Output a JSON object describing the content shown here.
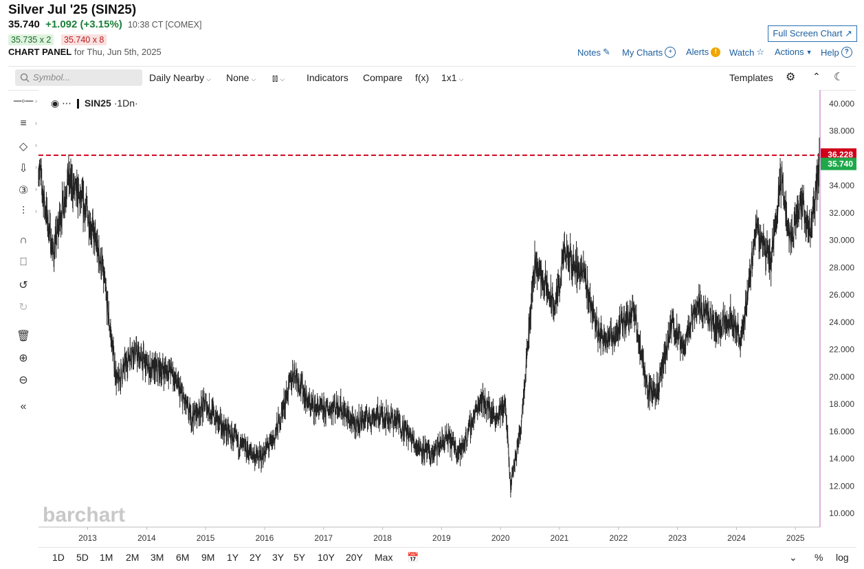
{
  "header": {
    "title": "Silver Jul '25 (SIN25)",
    "last": "35.740",
    "change": "+1.092 (+3.15%)",
    "time": "10:38 CT [COMEX]",
    "bid": "35.735 x 2",
    "ask": "35.740 x 8",
    "panel_label": "CHART PANEL",
    "panel_date": "for Thu, Jun 5th, 2025",
    "fullscreen_label": "Full Screen Chart"
  },
  "top_links": {
    "notes": "Notes",
    "my_charts": "My Charts",
    "alerts": "Alerts",
    "watch": "Watch",
    "actions": "Actions",
    "help": "Help"
  },
  "toolbar": {
    "search_placeholder": "Symbol...",
    "interval": "Daily Nearby",
    "overlay": "None",
    "indicators": "Indicators",
    "compare": "Compare",
    "fx": "f(x)",
    "layout": "1x1",
    "templates": "Templates"
  },
  "legend": {
    "symbol": "SIN25",
    "suffix": "·1Dn·"
  },
  "watermark": "barchart",
  "bottom_bar": {
    "ranges": [
      "1D",
      "5D",
      "1M",
      "2M",
      "3M",
      "6M",
      "9M",
      "1Y",
      "2Y",
      "3Y",
      "5Y",
      "10Y",
      "20Y",
      "Max"
    ],
    "percent": "%",
    "log": "log"
  },
  "colors": {
    "price_line": "#222222",
    "ref_line": "#d0021b",
    "last_badge": "#1fa84a",
    "ref_badge": "#d0021b",
    "axis_border": "#c060c0",
    "link": "#1d5fa0"
  },
  "chart_data": {
    "type": "line",
    "series": [
      {
        "name": "SIN25",
        "x": [
          "2012-03",
          "2012-06",
          "2012-09",
          "2013-01",
          "2013-04",
          "2013-07",
          "2013-10",
          "2014-02",
          "2014-06",
          "2014-10",
          "2015-01",
          "2015-04",
          "2015-08",
          "2015-12",
          "2016-03",
          "2016-07",
          "2016-10",
          "2017-01",
          "2017-04",
          "2017-07",
          "2017-10",
          "2018-01",
          "2018-04",
          "2018-08",
          "2018-11",
          "2019-02",
          "2019-05",
          "2019-09",
          "2019-12",
          "2020-02",
          "2020-03",
          "2020-05",
          "2020-08",
          "2020-12",
          "2021-02",
          "2021-06",
          "2021-09",
          "2021-12",
          "2022-04",
          "2022-07",
          "2022-09",
          "2022-12",
          "2023-02",
          "2023-05",
          "2023-09",
          "2023-12",
          "2024-02",
          "2024-05",
          "2024-08",
          "2024-10",
          "2024-12",
          "2025-02",
          "2025-04",
          "2025-06"
        ],
        "y": [
          35.5,
          29.0,
          34.5,
          32.0,
          28.0,
          19.5,
          22.0,
          20.5,
          20.5,
          17.0,
          18.0,
          16.5,
          15.0,
          14.0,
          15.5,
          20.5,
          18.0,
          17.5,
          18.0,
          16.5,
          17.0,
          17.2,
          16.8,
          15.0,
          14.2,
          15.5,
          14.5,
          18.5,
          17.0,
          18.0,
          12.0,
          16.0,
          28.5,
          25.0,
          29.0,
          27.5,
          23.0,
          23.0,
          25.0,
          19.0,
          19.0,
          24.0,
          22.0,
          25.5,
          23.5,
          24.5,
          22.5,
          31.0,
          28.5,
          34.5,
          30.0,
          33.0,
          30.5,
          35.74
        ]
      }
    ],
    "reference_line": 36.228,
    "last_value": "35.740",
    "ref_value_label": "36.228",
    "yticks": [
      "10.000",
      "12.000",
      "14.000",
      "16.000",
      "18.000",
      "20.000",
      "22.000",
      "24.000",
      "26.000",
      "28.000",
      "30.000",
      "32.000",
      "34.000",
      "36.000",
      "38.000",
      "40.000"
    ],
    "xticks": [
      "2013",
      "2014",
      "2015",
      "2016",
      "2017",
      "2018",
      "2019",
      "2020",
      "2021",
      "2022",
      "2023",
      "2024",
      "2025"
    ],
    "ylim": [
      9.0,
      41.0
    ],
    "xlim": [
      "2012-03",
      "2025-06"
    ],
    "y_axis_side": "right",
    "grid": false
  }
}
